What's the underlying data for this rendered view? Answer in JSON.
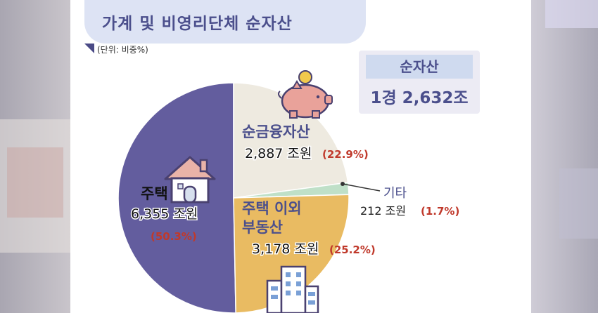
{
  "title": "가계 및 비영리단체 순자산",
  "unit_note": "(단위: 비중%)",
  "summary": {
    "label": "순자산",
    "value": "1경 2,632조"
  },
  "chart_data": {
    "type": "pie",
    "title": "가계 및 비영리단체 순자산",
    "slices": [
      {
        "label": "주택",
        "value_text": "6,355 조원",
        "pct_text": "(50.3%)",
        "value": 6355,
        "percent": 50.3,
        "color": "#635d9e"
      },
      {
        "label": "순금융자산",
        "value_text": "2,887 조원",
        "pct_text": "(22.9%)",
        "value": 2887,
        "percent": 22.9,
        "color": "#eeeae0"
      },
      {
        "label": "기타",
        "value_text": "212 조원",
        "pct_text": "(1.7%)",
        "value": 212,
        "percent": 1.7,
        "color": "#bfe0c8"
      },
      {
        "label_lines": [
          "주택 이외",
          "부동산"
        ],
        "value_text": "3,178 조원",
        "pct_text": "(25.2%)",
        "value": 3178,
        "percent": 25.2,
        "color": "#e9bb62"
      }
    ]
  },
  "colors": {
    "accent": "#4b4f8c",
    "percent_red": "#c0392b"
  },
  "icons": [
    "house-icon",
    "piggy-bank-icon",
    "building-icon"
  ]
}
